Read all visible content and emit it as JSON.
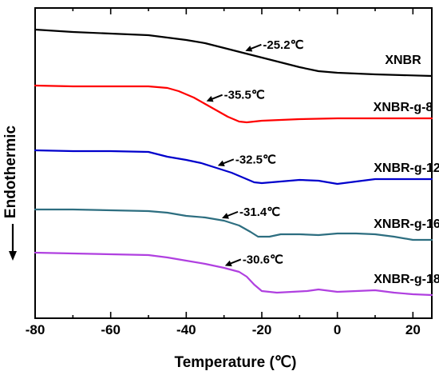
{
  "chart_data": {
    "type": "line",
    "title": "",
    "xlabel": "Temperature (℃)",
    "ylabel": "Endothermic",
    "xlim": [
      -80,
      25
    ],
    "xticks": [
      "-80",
      "-60",
      "-40",
      "-20",
      "0",
      "20"
    ],
    "xtick_values": [
      -80,
      -60,
      -40,
      -20,
      0,
      20
    ],
    "y_ticks_shown": false,
    "grid": false,
    "series": [
      {
        "name": "XNBR",
        "color": "#000000",
        "tg_label": "-25.2℃",
        "tg": -25.2,
        "points": [
          [
            -80,
            37
          ],
          [
            -70,
            40
          ],
          [
            -60,
            42
          ],
          [
            -50,
            44
          ],
          [
            -45,
            47
          ],
          [
            -40,
            50
          ],
          [
            -35,
            54
          ],
          [
            -30,
            60
          ],
          [
            -25,
            66
          ],
          [
            -20,
            72
          ],
          [
            -15,
            78
          ],
          [
            -10,
            84
          ],
          [
            -5,
            89
          ],
          [
            0,
            91
          ],
          [
            10,
            93
          ],
          [
            25,
            95
          ]
        ]
      },
      {
        "name": "XNBR-g-8",
        "color": "#ff0000",
        "tg_label": "-35.5℃",
        "tg": -35.5,
        "points": [
          [
            -80,
            107
          ],
          [
            -70,
            108
          ],
          [
            -60,
            108
          ],
          [
            -50,
            108
          ],
          [
            -45,
            110
          ],
          [
            -42,
            114
          ],
          [
            -38,
            122
          ],
          [
            -35,
            130
          ],
          [
            -32,
            138
          ],
          [
            -29,
            146
          ],
          [
            -26,
            152
          ],
          [
            -24,
            153
          ],
          [
            -20,
            151
          ],
          [
            -15,
            150
          ],
          [
            -10,
            149
          ],
          [
            0,
            148
          ],
          [
            10,
            148
          ],
          [
            25,
            148
          ]
        ]
      },
      {
        "name": "XNBR-g-12",
        "color": "#0000cc",
        "tg_label": "-32.5℃",
        "tg": -32.5,
        "points": [
          [
            -80,
            188
          ],
          [
            -70,
            189
          ],
          [
            -60,
            189
          ],
          [
            -50,
            190
          ],
          [
            -45,
            196
          ],
          [
            -40,
            200
          ],
          [
            -36,
            204
          ],
          [
            -32,
            210
          ],
          [
            -28,
            216
          ],
          [
            -25,
            222
          ],
          [
            -22,
            228
          ],
          [
            -20,
            229
          ],
          [
            -15,
            227
          ],
          [
            -10,
            225
          ],
          [
            -5,
            226
          ],
          [
            0,
            230
          ],
          [
            5,
            227
          ],
          [
            10,
            224
          ],
          [
            15,
            224
          ],
          [
            25,
            224
          ]
        ]
      },
      {
        "name": "XNBR-g-16",
        "color": "#2d6e80",
        "tg_label": "-31.4℃",
        "tg": -31.4,
        "points": [
          [
            -80,
            262
          ],
          [
            -70,
            262
          ],
          [
            -60,
            263
          ],
          [
            -50,
            264
          ],
          [
            -45,
            266
          ],
          [
            -40,
            270
          ],
          [
            -35,
            272
          ],
          [
            -30,
            276
          ],
          [
            -26,
            282
          ],
          [
            -23,
            290
          ],
          [
            -21,
            296
          ],
          [
            -18,
            296
          ],
          [
            -15,
            293
          ],
          [
            -10,
            293
          ],
          [
            -5,
            294
          ],
          [
            0,
            292
          ],
          [
            5,
            292
          ],
          [
            10,
            293
          ],
          [
            15,
            296
          ],
          [
            20,
            300
          ],
          [
            25,
            300
          ]
        ]
      },
      {
        "name": "XNBR-g-18",
        "color": "#b040e0",
        "tg_label": "-30.6℃",
        "tg": -30.6,
        "points": [
          [
            -80,
            316
          ],
          [
            -70,
            317
          ],
          [
            -60,
            318
          ],
          [
            -50,
            319
          ],
          [
            -45,
            322
          ],
          [
            -40,
            326
          ],
          [
            -35,
            330
          ],
          [
            -30,
            335
          ],
          [
            -26,
            340
          ],
          [
            -24,
            346
          ],
          [
            -22,
            356
          ],
          [
            -20,
            364
          ],
          [
            -16,
            366
          ],
          [
            -12,
            365
          ],
          [
            -8,
            364
          ],
          [
            -5,
            362
          ],
          [
            0,
            365
          ],
          [
            5,
            364
          ],
          [
            10,
            363
          ],
          [
            15,
            366
          ],
          [
            20,
            368
          ],
          [
            25,
            369
          ]
        ]
      }
    ]
  }
}
